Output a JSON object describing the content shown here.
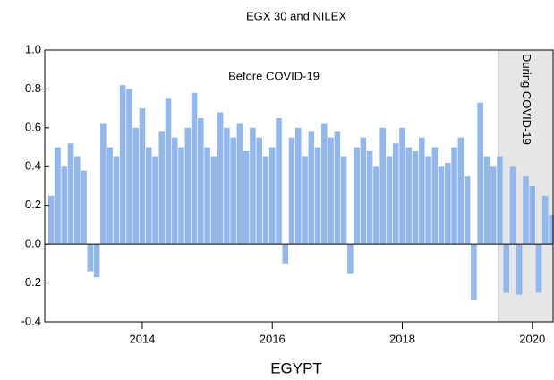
{
  "chart_data": {
    "type": "bar",
    "title": "EGX 30 and NILEX",
    "x_label": "EGYPT",
    "annotation": "Before COVID-19",
    "shaded_region": {
      "from": 2019.48,
      "to": 2020.32,
      "label": "During COVID-19"
    },
    "color": "#92b6ee",
    "x": [
      2012.6,
      2012.7,
      2012.8,
      2012.9,
      2013.0,
      2013.1,
      2013.2,
      2013.3,
      2013.4,
      2013.5,
      2013.6,
      2013.7,
      2013.8,
      2013.9,
      2014.0,
      2014.1,
      2014.2,
      2014.3,
      2014.4,
      2014.5,
      2014.6,
      2014.7,
      2014.8,
      2014.9,
      2015.0,
      2015.1,
      2015.2,
      2015.3,
      2015.4,
      2015.5,
      2015.6,
      2015.7,
      2015.8,
      2015.9,
      2016.0,
      2016.1,
      2016.2,
      2016.3,
      2016.4,
      2016.5,
      2016.6,
      2016.7,
      2016.8,
      2016.9,
      2017.0,
      2017.1,
      2017.2,
      2017.3,
      2017.4,
      2017.5,
      2017.6,
      2017.7,
      2017.8,
      2017.9,
      2018.0,
      2018.1,
      2018.2,
      2018.3,
      2018.4,
      2018.5,
      2018.6,
      2018.7,
      2018.8,
      2018.9,
      2019.0,
      2019.1,
      2019.2,
      2019.3,
      2019.4,
      2019.5,
      2019.6,
      2019.7,
      2019.8,
      2019.9,
      2020.0,
      2020.1,
      2020.2,
      2020.3
    ],
    "values": [
      0.25,
      0.5,
      0.4,
      0.52,
      0.45,
      0.38,
      -0.14,
      -0.17,
      0.62,
      0.5,
      0.45,
      0.82,
      0.8,
      0.6,
      0.7,
      0.5,
      0.45,
      0.58,
      0.75,
      0.55,
      0.5,
      0.6,
      0.78,
      0.65,
      0.5,
      0.45,
      0.68,
      0.6,
      0.55,
      0.62,
      0.48,
      0.6,
      0.55,
      0.45,
      0.5,
      0.65,
      -0.1,
      0.55,
      0.6,
      0.45,
      0.58,
      0.5,
      0.62,
      0.55,
      0.58,
      0.45,
      -0.15,
      0.5,
      0.55,
      0.48,
      0.4,
      0.6,
      0.45,
      0.52,
      0.6,
      0.5,
      0.48,
      0.55,
      0.45,
      0.5,
      0.4,
      0.42,
      0.5,
      0.55,
      0.35,
      -0.29,
      0.73,
      0.45,
      0.4,
      0.45,
      -0.25,
      0.4,
      -0.26,
      0.35,
      0.3,
      -0.25,
      0.25,
      0.15
    ],
    "xlim": [
      2012.5,
      2020.32
    ],
    "xticks": [
      2014,
      2016,
      2018,
      2020
    ],
    "ylim": [
      -0.4,
      1.0
    ],
    "yticks": [
      {
        "value": -0.4,
        "label": "-0.4"
      },
      {
        "value": -0.2,
        "label": "-0.2"
      },
      {
        "value": 0,
        "label": "0.0"
      },
      {
        "value": 0.2,
        "label": "0.2"
      },
      {
        "value": 0.4,
        "label": "0.4"
      },
      {
        "value": 0.6,
        "label": "0.6"
      },
      {
        "value": 0.8,
        "label": "0.8"
      },
      {
        "value": 1.0,
        "label": "1.0"
      }
    ]
  }
}
